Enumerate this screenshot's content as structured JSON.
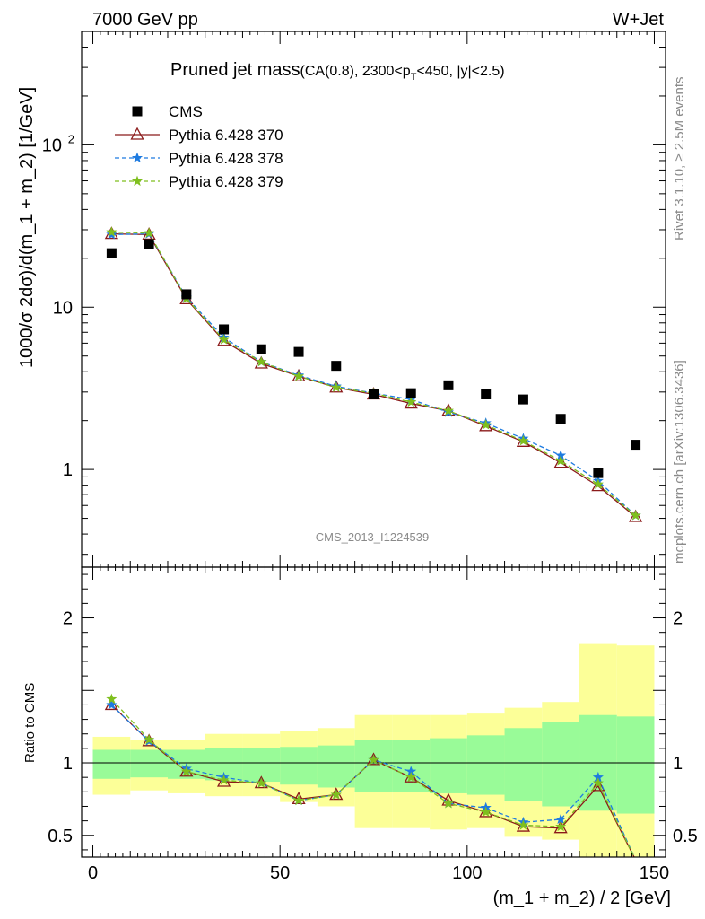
{
  "header": {
    "left": "7000 GeV pp",
    "right": "W+Jet"
  },
  "title": {
    "main": "Pruned jet mass",
    "sub_pre": "(CA(0.8), 2300<p",
    "sub_subscript": "T",
    "sub_post": "<450, |y|<2.5)"
  },
  "watermark": "CMS_2013_I1224539",
  "side_text": {
    "rivet": "Rivet 3.1.10, ≥ 2.5M events",
    "mcplots": "mcplots.cern.ch [arXiv:1306.3436]"
  },
  "legend": [
    {
      "name": "CMS",
      "color": "#000000",
      "marker": "square",
      "dash": "solid"
    },
    {
      "name": "Pythia 6.428 370",
      "color": "#8b1a1a",
      "marker": "triangle",
      "dash": "solid"
    },
    {
      "name": "Pythia 6.428 378",
      "color": "#1e7be0",
      "marker": "star",
      "dash": "dashed"
    },
    {
      "name": "Pythia 6.428 379",
      "color": "#7fbf1e",
      "marker": "star",
      "dash": "dashed"
    }
  ],
  "chart_data": [
    {
      "type": "scatter",
      "panel": "main",
      "ylabel": "1000/σ 2dσ)/d(m_1 + m_2) [1/GeV]",
      "yscale": "log",
      "ylim": [
        0.25,
        500
      ],
      "xlim": [
        -3,
        153
      ],
      "yticks": [
        {
          "v": 1,
          "label": "1"
        },
        {
          "v": 10,
          "label": "10"
        },
        {
          "v": 100,
          "label": "10^2"
        }
      ],
      "x": [
        5,
        15,
        25,
        35,
        45,
        55,
        65,
        75,
        85,
        95,
        105,
        115,
        125,
        135,
        145
      ],
      "series": [
        {
          "name": "CMS",
          "values": [
            21.5,
            24.5,
            12.0,
            7.3,
            5.5,
            5.3,
            4.35,
            2.9,
            2.95,
            3.3,
            2.9,
            2.7,
            2.05,
            0.95,
            1.42
          ]
        },
        {
          "name": "Pythia 6.428 370",
          "values": [
            28.3,
            28.0,
            11.2,
            6.2,
            4.5,
            3.75,
            3.2,
            2.9,
            2.55,
            2.3,
            1.85,
            1.48,
            1.1,
            0.79,
            0.51
          ]
        },
        {
          "name": "Pythia 6.428 378",
          "values": [
            28.0,
            28.3,
            11.5,
            6.5,
            4.6,
            3.8,
            3.25,
            2.95,
            2.7,
            2.25,
            1.93,
            1.55,
            1.22,
            0.85,
            0.52
          ]
        },
        {
          "name": "Pythia 6.428 379",
          "values": [
            29.0,
            28.6,
            11.3,
            6.3,
            4.6,
            3.75,
            3.2,
            2.95,
            2.6,
            2.3,
            1.88,
            1.5,
            1.13,
            0.81,
            0.52
          ]
        }
      ]
    },
    {
      "type": "scatter",
      "panel": "ratio",
      "xlabel": "(m_1 + m_2) / 2 [GeV]",
      "ylabel": "Ratio to CMS",
      "ylim": [
        0.35,
        2.35
      ],
      "xlim": [
        -3,
        153
      ],
      "xticks": [
        0,
        50,
        100,
        150
      ],
      "yticks": [
        {
          "v": 0.5,
          "label": "0.5"
        },
        {
          "v": 1,
          "label": "1"
        },
        {
          "v": 2,
          "label": "2"
        }
      ],
      "x": [
        5,
        15,
        25,
        35,
        45,
        55,
        65,
        75,
        85,
        95,
        105,
        115,
        125,
        135,
        145
      ],
      "bins": [
        0,
        10,
        20,
        30,
        40,
        50,
        60,
        70,
        80,
        90,
        100,
        110,
        120,
        130,
        140,
        150
      ],
      "band_stat": [
        [
          0.89,
          1.09
        ],
        [
          0.9,
          1.09
        ],
        [
          0.89,
          1.09
        ],
        [
          0.88,
          1.1
        ],
        [
          0.87,
          1.1
        ],
        [
          0.85,
          1.11
        ],
        [
          0.83,
          1.12
        ],
        [
          0.8,
          1.16
        ],
        [
          0.8,
          1.16
        ],
        [
          0.79,
          1.17
        ],
        [
          0.78,
          1.19
        ],
        [
          0.74,
          1.24
        ],
        [
          0.7,
          1.28
        ],
        [
          0.67,
          1.33
        ],
        [
          0.65,
          1.32
        ]
      ],
      "band_total": [
        [
          0.78,
          1.18
        ],
        [
          0.81,
          1.16
        ],
        [
          0.79,
          1.16
        ],
        [
          0.77,
          1.2
        ],
        [
          0.77,
          1.2
        ],
        [
          0.73,
          1.22
        ],
        [
          0.7,
          1.24
        ],
        [
          0.55,
          1.33
        ],
        [
          0.55,
          1.33
        ],
        [
          0.54,
          1.33
        ],
        [
          0.55,
          1.34
        ],
        [
          0.49,
          1.38
        ],
        [
          0.47,
          1.42
        ],
        [
          0.1,
          1.82
        ],
        [
          0.1,
          1.81
        ]
      ],
      "series": [
        {
          "name": "Pythia 6.428 370",
          "values": [
            1.4,
            1.15,
            0.94,
            0.87,
            0.86,
            0.75,
            0.78,
            1.02,
            0.9,
            0.74,
            0.66,
            0.56,
            0.55,
            0.84,
            0.33
          ]
        },
        {
          "name": "Pythia 6.428 378",
          "values": [
            1.4,
            1.15,
            0.96,
            0.9,
            0.86,
            0.74,
            0.78,
            1.02,
            0.94,
            0.72,
            0.69,
            0.59,
            0.61,
            0.9,
            0.33
          ]
        },
        {
          "name": "Pythia 6.428 379",
          "values": [
            1.44,
            1.16,
            0.94,
            0.88,
            0.86,
            0.74,
            0.78,
            1.02,
            0.9,
            0.72,
            0.66,
            0.57,
            0.56,
            0.86,
            0.33
          ]
        }
      ]
    }
  ],
  "colors": {
    "band_stat": "#99fb98",
    "band_total": "#fcff98"
  }
}
